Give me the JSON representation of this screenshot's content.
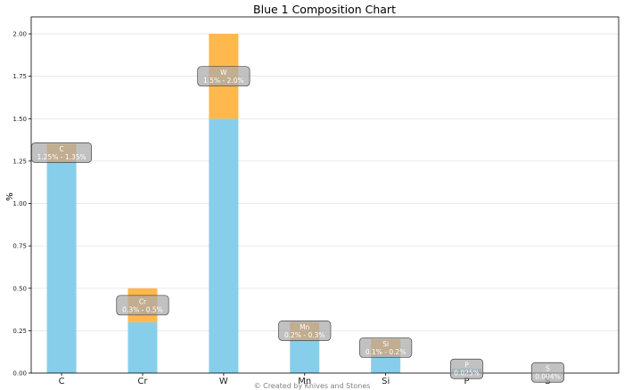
{
  "chart_data": {
    "type": "bar",
    "title": "Blue 1 Composition Chart",
    "ylabel": "%",
    "xlabel": "",
    "ylim": [
      0,
      2.1
    ],
    "yticks": [
      0,
      0.25,
      0.5,
      0.75,
      1.0,
      1.25,
      1.5,
      1.75,
      2.0
    ],
    "ytick_labels": [
      "0.00",
      "0.25",
      "0.50",
      "0.75",
      "1.00",
      "1.25",
      "1.50",
      "1.75",
      "2.00"
    ],
    "grid": "horizontal",
    "categories": [
      "C",
      "Cr",
      "W",
      "Mn",
      "Si",
      "P",
      "S"
    ],
    "series": [
      {
        "values": [
          1.25,
          0.3,
          1.5,
          0.2,
          0.1,
          0.025,
          0.004
        ]
      },
      {
        "values": [
          0.1,
          0.2,
          0.5,
          0.1,
          0.1,
          0.0,
          0.0
        ]
      }
    ],
    "ranges": [
      {
        "element": "C",
        "label": "1.25% - 1.35%"
      },
      {
        "element": "Cr",
        "label": "0.3% - 0.5%"
      },
      {
        "element": "W",
        "label": "1.5% - 2.0%"
      },
      {
        "element": "Mn",
        "label": "0.2% - 0.3%"
      },
      {
        "element": "Si",
        "label": "0.1% - 0.2%"
      },
      {
        "element": "P",
        "label": "0.025%"
      },
      {
        "element": "S",
        "label": "0.004%"
      }
    ],
    "colors": {
      "min": "#87ceeb",
      "range": "#ffb84d",
      "annotation_box": "#a9a9a9",
      "grid": "#e3e3e3"
    }
  },
  "credit": "© Created by Knives and Stones"
}
